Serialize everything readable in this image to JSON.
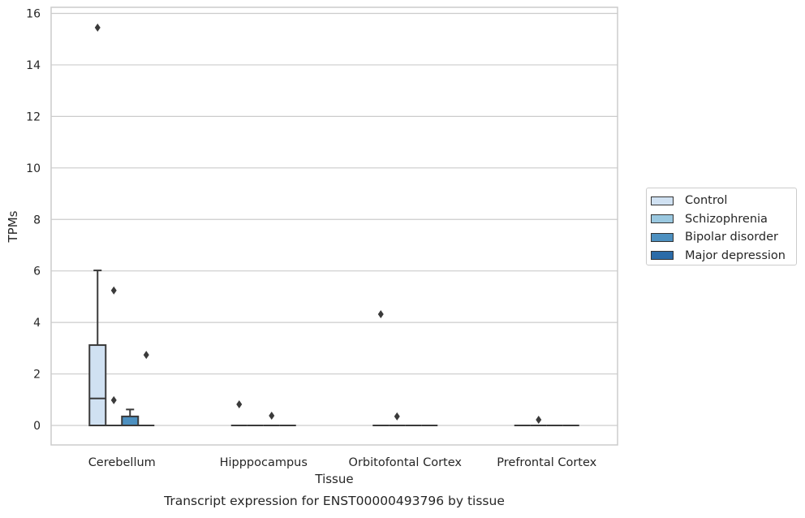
{
  "chart_data": {
    "type": "box",
    "title": "Transcript expression for ENST00000493796 by tissue",
    "xlabel": "Tissue",
    "ylabel": "TPMs",
    "ylim": [
      -0.75,
      16.25
    ],
    "yticks": [
      0,
      2,
      4,
      6,
      8,
      10,
      12,
      14,
      16
    ],
    "categories": [
      "Cerebellum",
      "Hipppocampus",
      "Orbitofontal Cortex",
      "Prefrontal Cortex"
    ],
    "grid": true,
    "legend_position": "right",
    "series": [
      {
        "name": "Control",
        "color": "#d0e1f2",
        "boxes": [
          {
            "q1": 0,
            "median": 1.05,
            "q3": 3.12,
            "whisker_low": 0,
            "whisker_high": 6.02,
            "outliers": [
              15.45
            ]
          },
          {
            "q1": 0,
            "median": 0,
            "q3": 0,
            "whisker_low": 0,
            "whisker_high": 0,
            "outliers": [
              0.82
            ]
          },
          {
            "q1": 0,
            "median": 0,
            "q3": 0,
            "whisker_low": 0,
            "whisker_high": 0,
            "outliers": [
              4.32
            ]
          },
          {
            "q1": 0,
            "median": 0,
            "q3": 0,
            "whisker_low": 0,
            "whisker_high": 0,
            "outliers": []
          }
        ]
      },
      {
        "name": "Schizophrenia",
        "color": "#9ac8e0",
        "boxes": [
          {
            "q1": 0,
            "median": 0,
            "q3": 0,
            "whisker_low": 0,
            "whisker_high": 0,
            "outliers": [
              0.98,
              5.24
            ]
          },
          {
            "q1": 0,
            "median": 0,
            "q3": 0,
            "whisker_low": 0,
            "whisker_high": 0,
            "outliers": []
          },
          {
            "q1": 0,
            "median": 0,
            "q3": 0,
            "whisker_low": 0,
            "whisker_high": 0,
            "outliers": [
              0.35
            ]
          },
          {
            "q1": 0,
            "median": 0,
            "q3": 0,
            "whisker_low": 0,
            "whisker_high": 0,
            "outliers": [
              0.22
            ]
          }
        ]
      },
      {
        "name": "Bipolar disorder",
        "color": "#4d90c0",
        "boxes": [
          {
            "q1": 0,
            "median": 0,
            "q3": 0.35,
            "whisker_low": 0,
            "whisker_high": 0.62,
            "outliers": []
          },
          {
            "q1": 0,
            "median": 0,
            "q3": 0,
            "whisker_low": 0,
            "whisker_high": 0,
            "outliers": [
              0.38
            ]
          },
          {
            "q1": 0,
            "median": 0,
            "q3": 0,
            "whisker_low": 0,
            "whisker_high": 0,
            "outliers": []
          },
          {
            "q1": 0,
            "median": 0,
            "q3": 0,
            "whisker_low": 0,
            "whisker_high": 0,
            "outliers": []
          }
        ]
      },
      {
        "name": "Major depression",
        "color": "#2b6ba8",
        "boxes": [
          {
            "q1": 0,
            "median": 0,
            "q3": 0,
            "whisker_low": 0,
            "whisker_high": 0,
            "outliers": [
              2.74
            ]
          },
          {
            "q1": 0,
            "median": 0,
            "q3": 0,
            "whisker_low": 0,
            "whisker_high": 0,
            "outliers": []
          },
          {
            "q1": 0,
            "median": 0,
            "q3": 0,
            "whisker_low": 0,
            "whisker_high": 0,
            "outliers": []
          },
          {
            "q1": 0,
            "median": 0,
            "q3": 0,
            "whisker_low": 0,
            "whisker_high": 0,
            "outliers": []
          }
        ]
      }
    ]
  }
}
